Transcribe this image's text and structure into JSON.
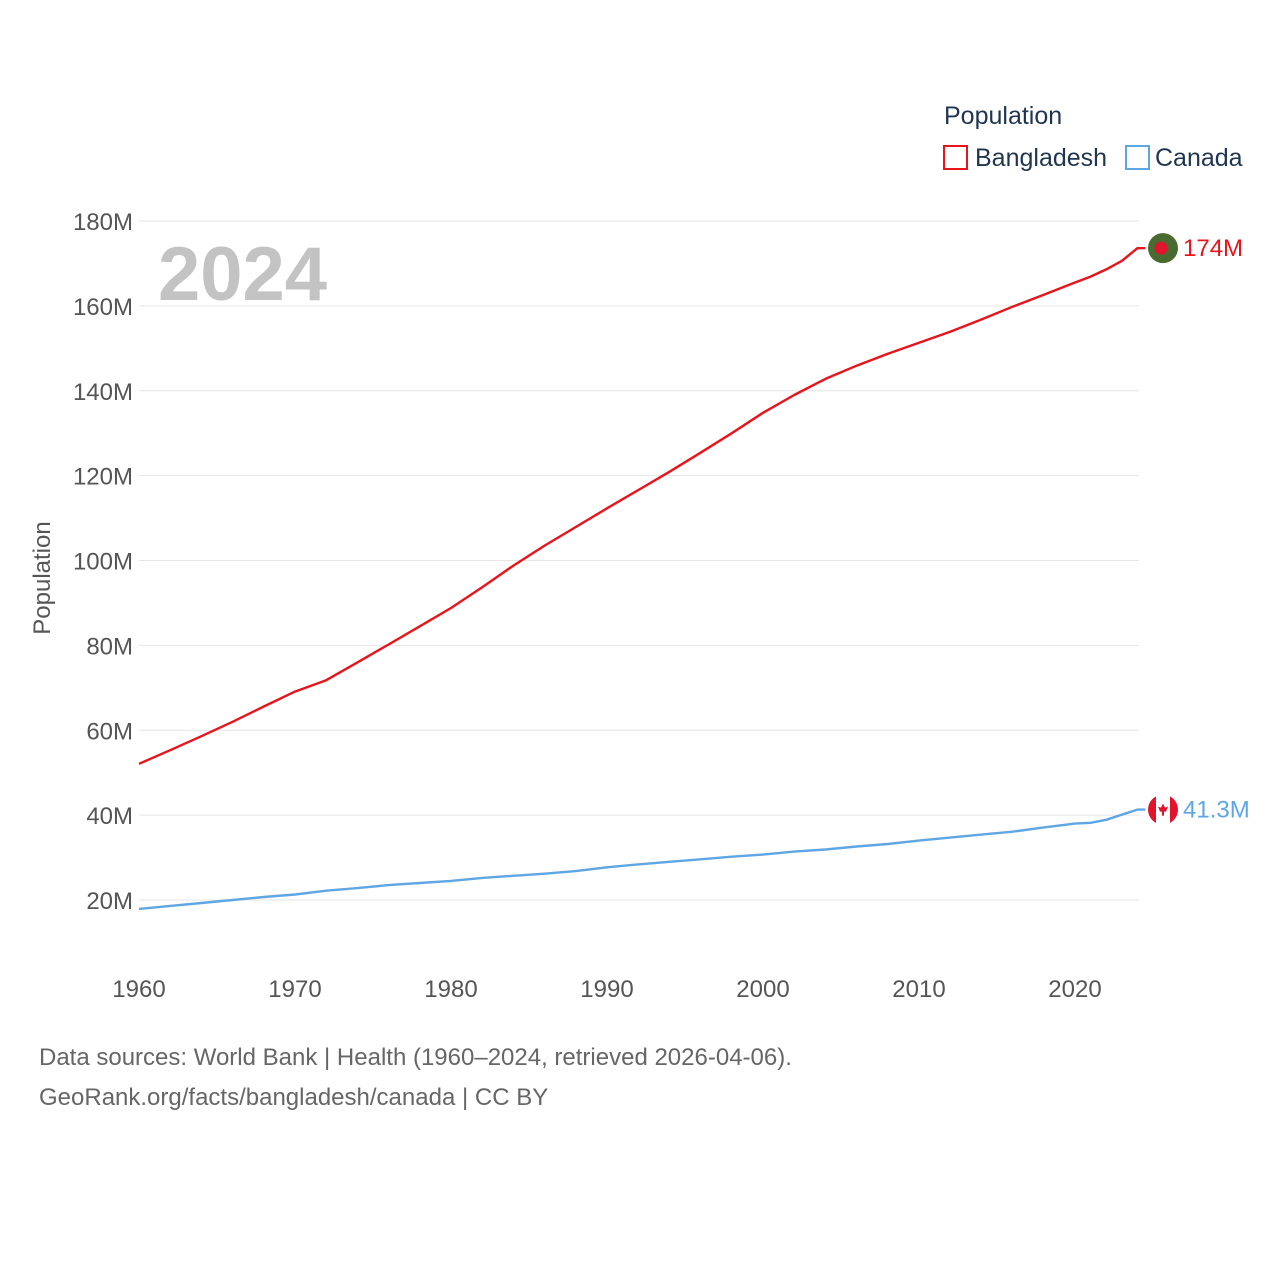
{
  "chart_data": {
    "type": "line",
    "ylabel": "Population",
    "xlabel": "",
    "legend_title": "Population",
    "legend_position": "top-right",
    "year_label": "2024",
    "xlim": [
      1960,
      2024
    ],
    "ylim": [
      0,
      180
    ],
    "x_ticks": [
      1960,
      1970,
      1980,
      1990,
      2000,
      2010,
      2020
    ],
    "x_tick_labels": [
      "1960",
      "1970",
      "1980",
      "1990",
      "2000",
      "2010",
      "2020"
    ],
    "y_ticks": [
      20,
      40,
      60,
      80,
      100,
      120,
      140,
      160,
      180
    ],
    "y_tick_labels": [
      "20M",
      "40M",
      "60M",
      "80M",
      "100M",
      "120M",
      "140M",
      "160M",
      "180M"
    ],
    "x": [
      1960,
      1962,
      1964,
      1966,
      1968,
      1970,
      1972,
      1974,
      1976,
      1978,
      1980,
      1982,
      1984,
      1986,
      1988,
      1990,
      1992,
      1994,
      1996,
      1998,
      2000,
      2002,
      2004,
      2006,
      2008,
      2010,
      2012,
      2014,
      2016,
      2018,
      2020,
      2021,
      2022,
      2023,
      2024
    ],
    "series": [
      {
        "name": "Bangladesh",
        "color": "#e8141c",
        "end_label": "174M",
        "flag": "bangladesh-flag",
        "values": [
          52.1,
          55.3,
          58.6,
          62.0,
          65.6,
          69.1,
          71.8,
          76.0,
          80.2,
          84.5,
          88.8,
          93.7,
          98.8,
          103.5,
          107.9,
          112.3,
          116.6,
          120.9,
          125.4,
          130.0,
          134.8,
          139.0,
          142.8,
          145.9,
          148.7,
          151.3,
          153.9,
          156.8,
          159.8,
          162.6,
          165.5,
          166.9,
          168.6,
          170.6,
          173.6
        ]
      },
      {
        "name": "Canada",
        "color": "#5fa6e4",
        "end_label": "41.3M",
        "flag": "canada-flag",
        "values": [
          17.9,
          18.6,
          19.3,
          20.0,
          20.7,
          21.3,
          22.2,
          22.8,
          23.5,
          24.0,
          24.5,
          25.2,
          25.7,
          26.2,
          26.8,
          27.7,
          28.4,
          29.0,
          29.6,
          30.2,
          30.7,
          31.4,
          31.9,
          32.6,
          33.2,
          34.0,
          34.7,
          35.4,
          36.1,
          37.1,
          38.0,
          38.2,
          38.9,
          40.1,
          41.3
        ]
      }
    ]
  },
  "footer": {
    "source": "Data sources: World Bank | Health (1960–2024, retrieved 2026-04-06).",
    "credit": "GeoRank.org/facts/bangladesh/canada | CC BY"
  }
}
